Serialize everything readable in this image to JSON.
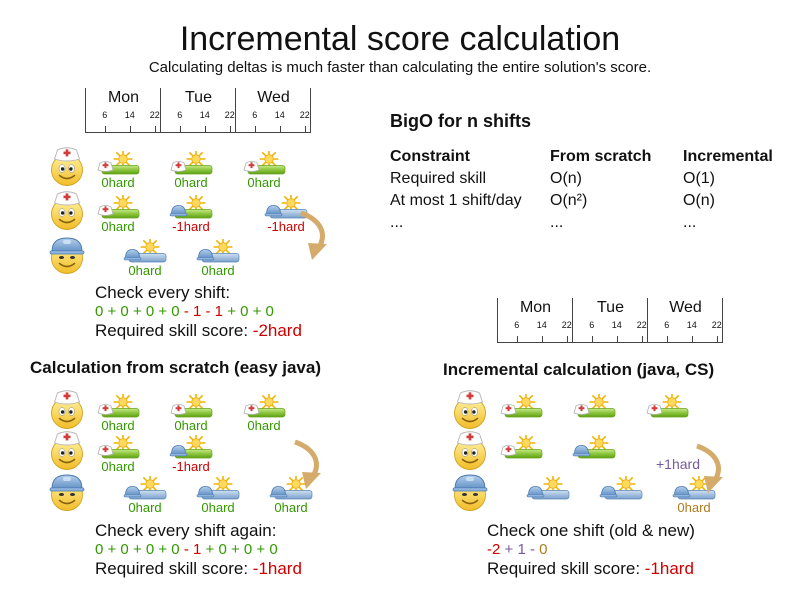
{
  "title": "Incremental score calculation",
  "subtitle": "Calculating deltas is much faster than calculating the entire solution's score.",
  "colors": {
    "green": "#339900",
    "red": "#cc0000",
    "purple": "#765aa0",
    "gold": "#aa7c1e",
    "arrow": "#d4ab6a",
    "text": "#111111"
  },
  "timeline": {
    "days": [
      "Mon",
      "Tue",
      "Wed"
    ],
    "hours": [
      "6",
      "14",
      "22"
    ]
  },
  "bigo": {
    "title": "BigO for n shifts",
    "columns": [
      "Constraint",
      "From scratch",
      "Incremental"
    ],
    "rows": [
      [
        "Required skill",
        "O(n)",
        "O(1)"
      ],
      [
        "At most 1 shift/day",
        "O(n²)",
        "O(n)"
      ],
      [
        "...",
        "...",
        "..."
      ]
    ]
  },
  "sections": {
    "intro": {
      "grid": {
        "rows": [
          {
            "avatar": "nurse",
            "shifts": [
              {
                "col": 0,
                "hat": "nurse",
                "bar": "green",
                "label": "0hard",
                "color": "green"
              },
              {
                "col": 1,
                "hat": "nurse",
                "bar": "green",
                "label": "0hard",
                "color": "green"
              },
              {
                "col": 2,
                "hat": "nurse",
                "bar": "green",
                "label": "0hard",
                "color": "green"
              }
            ]
          },
          {
            "avatar": "nurse",
            "shifts": [
              {
                "col": 0,
                "hat": "nurse",
                "bar": "green",
                "label": "0hard",
                "color": "green"
              },
              {
                "col": 1,
                "hat": "builder",
                "bar": "green",
                "label": "-1hard",
                "color": "red"
              },
              {
                "col": 2.3,
                "hat": "builder",
                "bar": "blue",
                "label": "-1hard",
                "color": "red"
              }
            ]
          },
          {
            "avatar": "builder",
            "shifts": [
              {
                "col": 0.37,
                "hat": "builder",
                "bar": "blue",
                "label": "0hard",
                "color": "green"
              },
              {
                "col": 1.37,
                "hat": "builder",
                "bar": "blue",
                "label": "0hard",
                "color": "green"
              }
            ]
          }
        ]
      },
      "check_label": "Check every shift:",
      "formula": [
        {
          "t": "0 + 0 + 0 + 0 ",
          "c": "green"
        },
        {
          "t": "- 1 - 1 ",
          "c": "red"
        },
        {
          "t": "+ 0 + 0",
          "c": "green"
        }
      ],
      "score_label": "Required skill score: ",
      "score_value": "-2hard"
    },
    "scratch": {
      "heading": "Calculation from scratch (easy java)",
      "grid": {
        "rows": [
          {
            "avatar": "nurse",
            "shifts": [
              {
                "col": 0,
                "hat": "nurse",
                "bar": "green",
                "label": "0hard",
                "color": "green"
              },
              {
                "col": 1,
                "hat": "nurse",
                "bar": "green",
                "label": "0hard",
                "color": "green"
              },
              {
                "col": 2,
                "hat": "nurse",
                "bar": "green",
                "label": "0hard",
                "color": "green"
              }
            ]
          },
          {
            "avatar": "nurse",
            "shifts": [
              {
                "col": 0,
                "hat": "nurse",
                "bar": "green",
                "label": "0hard",
                "color": "green"
              },
              {
                "col": 1,
                "hat": "builder",
                "bar": "green",
                "label": "-1hard",
                "color": "red"
              }
            ]
          },
          {
            "avatar": "builder",
            "shifts": [
              {
                "col": 0.37,
                "hat": "builder",
                "bar": "blue",
                "label": "0hard",
                "color": "green"
              },
              {
                "col": 1.37,
                "hat": "builder",
                "bar": "blue",
                "label": "0hard",
                "color": "green"
              },
              {
                "col": 2.37,
                "hat": "builder",
                "bar": "blue",
                "label": "0hard",
                "color": "green"
              }
            ]
          }
        ]
      },
      "check_label": "Check every shift again:",
      "formula": [
        {
          "t": "0 + 0 + 0 + 0 ",
          "c": "green"
        },
        {
          "t": "- 1 ",
          "c": "red"
        },
        {
          "t": "+ 0 + 0 + 0",
          "c": "green"
        }
      ],
      "score_label": "Required skill score: ",
      "score_value": "-1hard"
    },
    "incremental": {
      "heading": "Incremental calculation (java, CS)",
      "delta_label": "+1hard",
      "grid": {
        "rows": [
          {
            "avatar": "nurse",
            "shifts": [
              {
                "col": 0,
                "hat": "nurse",
                "bar": "green"
              },
              {
                "col": 1,
                "hat": "nurse",
                "bar": "green"
              },
              {
                "col": 2,
                "hat": "nurse",
                "bar": "green"
              }
            ]
          },
          {
            "avatar": "nurse",
            "shifts": [
              {
                "col": 0,
                "hat": "nurse",
                "bar": "green"
              },
              {
                "col": 1,
                "hat": "builder",
                "bar": "green"
              }
            ]
          },
          {
            "avatar": "builder",
            "shifts": [
              {
                "col": 0.37,
                "hat": "builder",
                "bar": "blue"
              },
              {
                "col": 1.37,
                "hat": "builder",
                "bar": "blue"
              },
              {
                "col": 2.37,
                "hat": "builder",
                "bar": "blue",
                "label": "0hard",
                "color": "gold"
              }
            ]
          }
        ]
      },
      "check_label": "Check one shift (old & new)",
      "formula": [
        {
          "t": "-2",
          "c": "red"
        },
        {
          "t": " + 1",
          "c": "purple"
        },
        {
          "t": " - ",
          "c": "purple"
        },
        {
          "t": "0",
          "c": "gold"
        }
      ],
      "score_label": "Required skill score: ",
      "score_value": "-1hard"
    }
  }
}
